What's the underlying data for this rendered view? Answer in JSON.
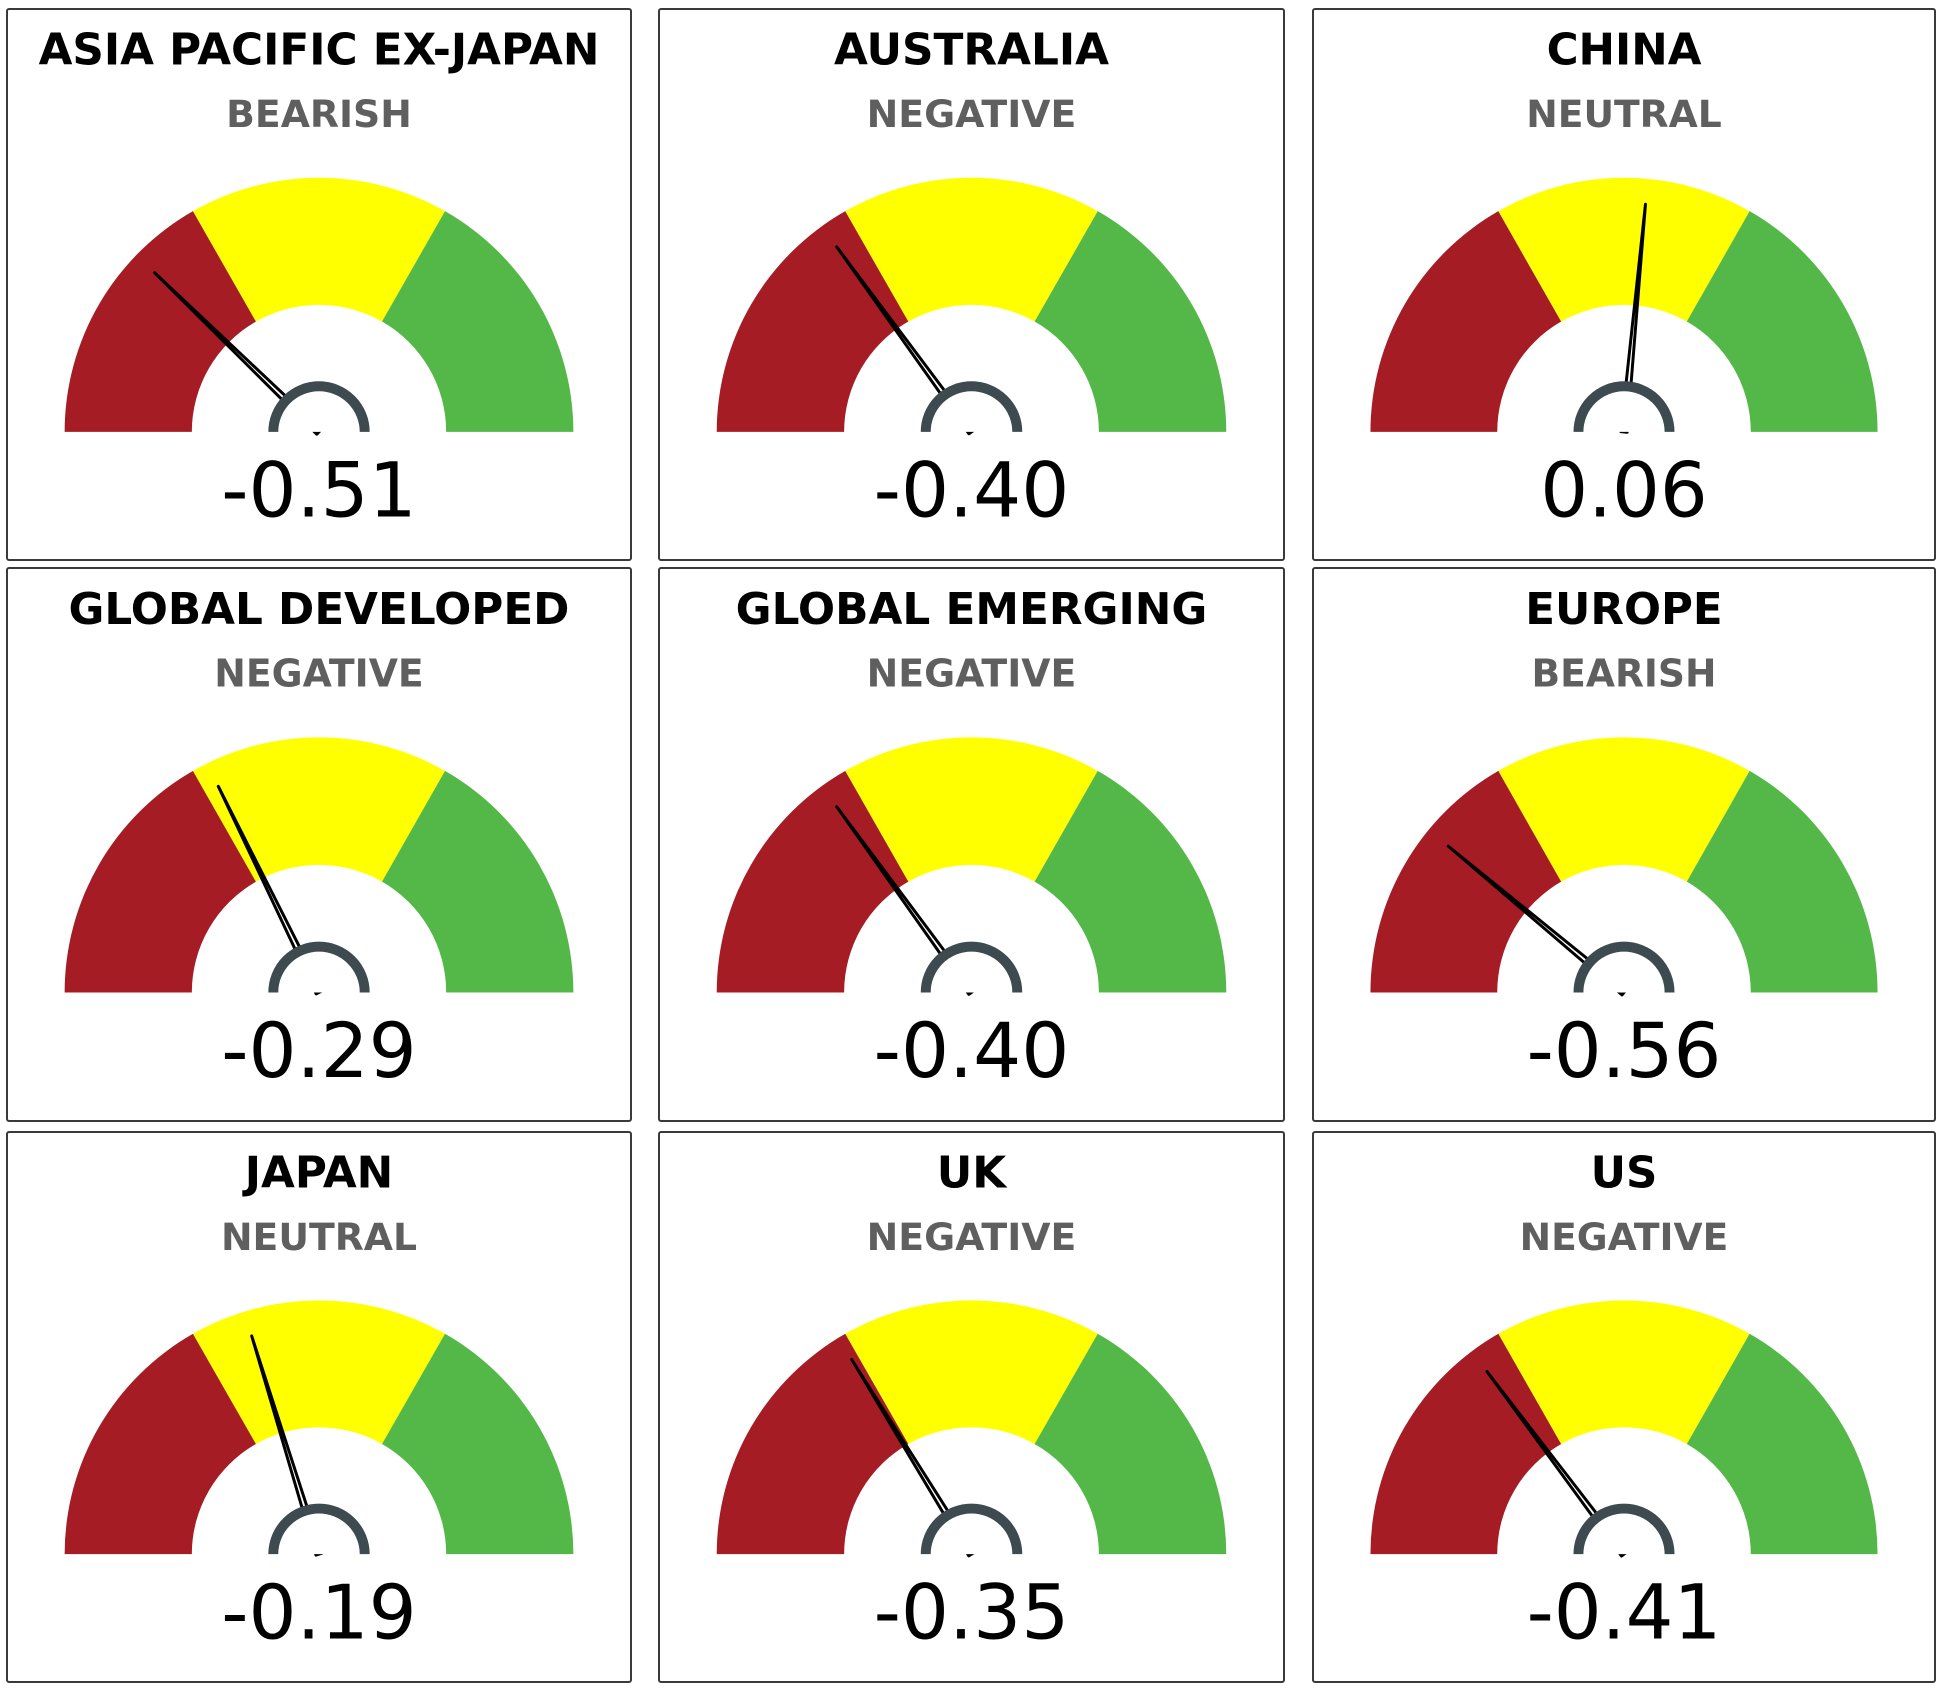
{
  "chart_data": {
    "type": "gauge",
    "scale_min": -1,
    "scale_max": 1,
    "bands": [
      {
        "from": -1,
        "to": -0.33,
        "color": "#a51c24"
      },
      {
        "from": -0.33,
        "to": 0.33,
        "color": "#ffff00"
      },
      {
        "from": 0.33,
        "to": 1,
        "color": "#54b848"
      }
    ],
    "gauges": [
      {
        "title": "ASIA PACIFIC EX-JAPAN",
        "status": "BEARISH",
        "value": -0.51,
        "label": "-0.51"
      },
      {
        "title": "AUSTRALIA",
        "status": "NEGATIVE",
        "value": -0.4,
        "label": "-0.40"
      },
      {
        "title": "CHINA",
        "status": "NEUTRAL",
        "value": 0.06,
        "label": "0.06"
      },
      {
        "title": "GLOBAL DEVELOPED",
        "status": "NEGATIVE",
        "value": -0.29,
        "label": "-0.29"
      },
      {
        "title": "GLOBAL EMERGING",
        "status": "NEGATIVE",
        "value": -0.4,
        "label": "-0.40"
      },
      {
        "title": "EUROPE",
        "status": "BEARISH",
        "value": -0.56,
        "label": "-0.56"
      },
      {
        "title": "JAPAN",
        "status": "NEUTRAL",
        "value": -0.19,
        "label": "-0.19"
      },
      {
        "title": "UK",
        "status": "NEGATIVE",
        "value": -0.35,
        "label": "-0.35"
      },
      {
        "title": "US",
        "status": "NEGATIVE",
        "value": -0.41,
        "label": "-0.41"
      }
    ],
    "needle_color": "#000000",
    "hub_color": "#3d4a4f"
  }
}
